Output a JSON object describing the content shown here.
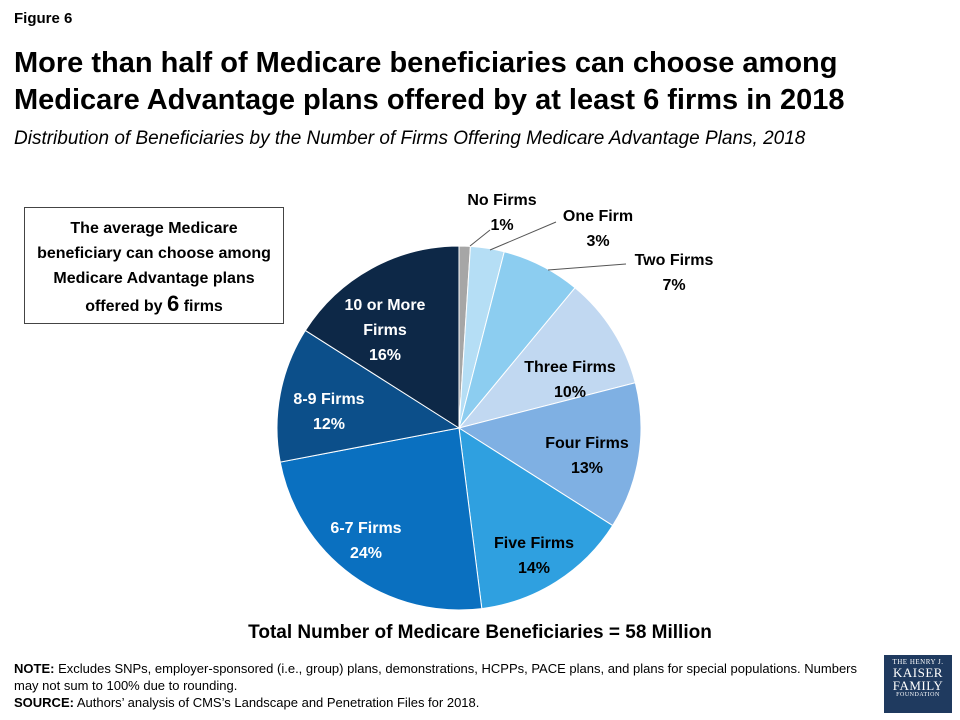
{
  "figure_label": "Figure 6",
  "title": "More than half of Medicare beneficiaries can choose among Medicare Advantage plans offered by at least 6 firms in 2018",
  "subtitle": "Distribution of Beneficiaries by the Number of Firms Offering Medicare Advantage Plans, 2018",
  "callout": {
    "text_before": "The average Medicare beneficiary can choose among Medicare Advantage plans offered by",
    "number": "6",
    "text_after": "firms"
  },
  "chart_data": {
    "type": "pie",
    "slices": [
      {
        "label": "No Firms",
        "value": 1,
        "display": "1%",
        "color": "#a6a6a6"
      },
      {
        "label": "One Firm",
        "value": 3,
        "display": "3%",
        "color": "#b5def5"
      },
      {
        "label": "Two Firms",
        "value": 7,
        "display": "7%",
        "color": "#8ccdf0"
      },
      {
        "label": "Three Firms",
        "value": 10,
        "display": "10%",
        "color": "#c1d8f1"
      },
      {
        "label": "Four Firms",
        "value": 13,
        "display": "13%",
        "color": "#7fb0e3"
      },
      {
        "label": "Five Firms",
        "value": 14,
        "display": "14%",
        "color": "#2fa0e0"
      },
      {
        "label": "6-7 Firms",
        "value": 24,
        "display": "24%",
        "color": "#0a70c0"
      },
      {
        "label": "8-9 Firms",
        "value": 12,
        "display": "12%",
        "color": "#0c4f8a"
      },
      {
        "label": "10 or More Firms",
        "value": 16,
        "display": "16%",
        "color": "#0d2847"
      }
    ],
    "legend": "none",
    "direction": "clockwise",
    "start": "top"
  },
  "total_label": "Total Number of Medicare Beneficiaries = 58 Million",
  "note": {
    "label": "NOTE:",
    "text": "Excludes SNPs, employer-sponsored (i.e., group) plans, demonstrations, HCPPs, PACE plans, and plans for special populations. Numbers may not sum to 100% due to rounding."
  },
  "source": {
    "label": "SOURCE:",
    "text": "Authors’ analysis of CMS’s Landscape and Penetration Files for 2018."
  },
  "logo": {
    "line1": "THE HENRY J.",
    "line2": "KAISER",
    "line3": "FAMILY",
    "line4": "FOUNDATION"
  }
}
